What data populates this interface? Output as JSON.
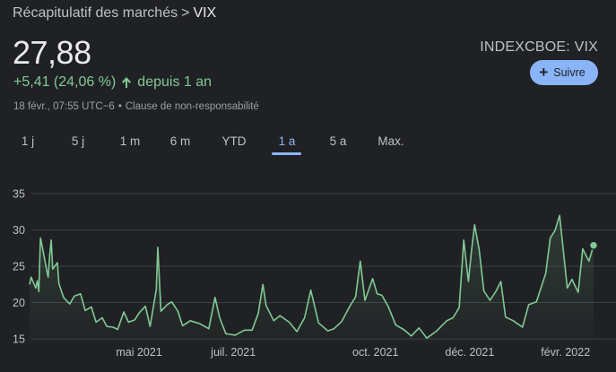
{
  "breadcrumb": {
    "parent": "Récapitulatif des marchés",
    "separator": ">",
    "current": "VIX"
  },
  "quote": {
    "price": "27,88",
    "change": "+5,41 (24,06 %)",
    "period": "depuis 1 an",
    "timestamp": "18 févr., 07:55 UTC−6",
    "disclaimer": "Clause de non-responsabilité",
    "ticker": "INDEXCBOE: VIX"
  },
  "follow_button": {
    "label": "Suivre",
    "icon": "plus-icon"
  },
  "range_tabs": {
    "items": [
      "1 j",
      "5 j",
      "1 m",
      "6 m",
      "YTD",
      "1 a",
      "5 a",
      "Max."
    ],
    "selected": "1 a"
  },
  "colors": {
    "background": "#202124",
    "positive": "#81c995",
    "accent": "#8ab4f8",
    "text": "#e8eaed",
    "muted": "#9aa0a6",
    "grid": "#3c4043"
  },
  "chart_data": {
    "type": "area",
    "ylim": [
      15,
      35
    ],
    "yticks": [
      "35",
      "30",
      "25",
      "20",
      "15"
    ],
    "xtick_labels": [
      "mai 2021",
      "juil. 2021",
      "oct. 2021",
      "déc. 2021",
      "févr. 2022"
    ],
    "xlim": [
      "2021-02-18",
      "2022-02-18"
    ],
    "grid": true,
    "legend": "none",
    "series": [
      {
        "x": [
          "2021-02-18",
          "2021-02-19",
          "2021-02-22",
          "2021-02-23",
          "2021-02-24",
          "2021-02-25",
          "2021-02-26",
          "2021-03-01",
          "2021-03-02",
          "2021-03-03",
          "2021-03-04",
          "2021-03-05",
          "2021-03-08",
          "2021-03-09",
          "2021-03-12",
          "2021-03-16",
          "2021-03-19",
          "2021-03-23",
          "2021-03-26",
          "2021-03-30",
          "2021-04-02",
          "2021-04-06",
          "2021-04-09",
          "2021-04-13",
          "2021-04-16",
          "2021-04-20",
          "2021-04-23",
          "2021-04-27",
          "2021-04-30",
          "2021-05-04",
          "2021-05-07",
          "2021-05-11",
          "2021-05-12",
          "2021-05-14",
          "2021-05-18",
          "2021-05-21",
          "2021-05-25",
          "2021-05-28",
          "2021-06-02",
          "2021-06-08",
          "2021-06-14",
          "2021-06-18",
          "2021-06-21",
          "2021-06-25",
          "2021-07-01",
          "2021-07-07",
          "2021-07-12",
          "2021-07-16",
          "2021-07-19",
          "2021-07-21",
          "2021-07-26",
          "2021-07-30",
          "2021-08-05",
          "2021-08-10",
          "2021-08-15",
          "2021-08-19",
          "2021-08-24",
          "2021-08-30",
          "2021-09-03",
          "2021-09-08",
          "2021-09-13",
          "2021-09-17",
          "2021-09-20",
          "2021-09-23",
          "2021-09-28",
          "2021-10-01",
          "2021-10-04",
          "2021-10-08",
          "2021-10-13",
          "2021-10-18",
          "2021-10-23",
          "2021-10-28",
          "2021-11-02",
          "2021-11-08",
          "2021-11-15",
          "2021-11-19",
          "2021-11-23",
          "2021-11-26",
          "2021-11-29",
          "2021-12-01",
          "2021-12-03",
          "2021-12-06",
          "2021-12-09",
          "2021-12-13",
          "2021-12-17",
          "2021-12-20",
          "2021-12-23",
          "2021-12-28",
          "2022-01-03",
          "2022-01-07",
          "2022-01-12",
          "2022-01-18",
          "2022-01-21",
          "2022-01-24",
          "2022-01-27",
          "2022-02-01",
          "2022-02-04",
          "2022-02-08",
          "2022-02-11",
          "2022-02-15",
          "2022-02-18"
        ],
        "y": [
          22.5,
          23.5,
          22.0,
          23.0,
          21.5,
          28.9,
          27.9,
          24.5,
          23.5,
          26.5,
          28.6,
          24.6,
          25.5,
          22.6,
          20.7,
          19.8,
          20.9,
          21.2,
          18.9,
          19.4,
          17.3,
          17.9,
          16.7,
          16.6,
          16.3,
          18.7,
          17.3,
          17.6,
          18.6,
          19.5,
          16.7,
          21.8,
          27.6,
          18.8,
          19.7,
          20.1,
          18.8,
          16.8,
          17.5,
          17.1,
          16.4,
          20.7,
          17.9,
          15.7,
          15.5,
          16.2,
          16.2,
          18.5,
          22.5,
          19.6,
          17.5,
          18.2,
          17.3,
          16.0,
          17.9,
          21.7,
          17.2,
          16.1,
          16.4,
          17.4,
          19.4,
          20.8,
          25.7,
          20.3,
          23.3,
          21.2,
          21.0,
          19.5,
          16.9,
          16.3,
          15.4,
          16.5,
          15.1,
          16.0,
          17.5,
          17.9,
          19.3,
          28.6,
          22.9,
          27.2,
          30.7,
          27.2,
          21.6,
          20.3,
          21.6,
          22.9,
          18.0,
          17.5,
          16.6,
          19.7,
          20.1,
          24.0,
          28.9,
          29.9,
          32.0,
          22.0,
          23.2,
          21.4,
          27.4,
          25.7,
          27.88
        ]
      }
    ]
  }
}
